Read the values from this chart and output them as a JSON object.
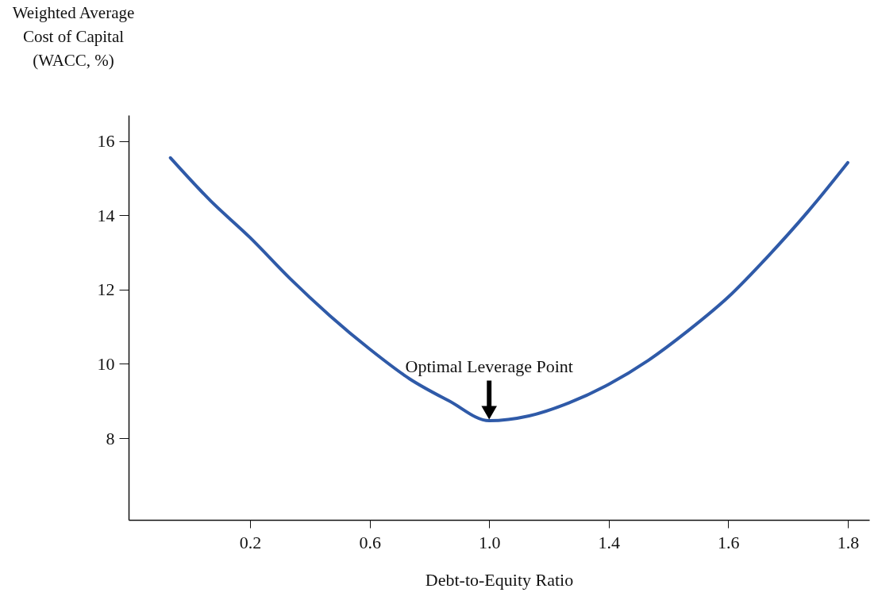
{
  "chart_data": {
    "type": "line",
    "xlabel": "Debt-to-Equity Ratio",
    "ylabel": "Weighted Average Cost of Capital (WACC, %)",
    "categories": [
      null,
      null,
      "0.2",
      null,
      null,
      "0.6",
      null,
      null,
      "1.0",
      null,
      null,
      "1.4",
      null,
      null,
      "1.6",
      null,
      null,
      "1.8"
    ],
    "series": [
      {
        "color": "#2f5aa8",
        "values": [
          15.55,
          14.4,
          13.4,
          12.3,
          11.3,
          10.4,
          9.6,
          9.0,
          8.47,
          8.6,
          8.95,
          9.45,
          10.1,
          10.9,
          11.8,
          12.9,
          14.1,
          15.42
        ]
      }
    ],
    "ylim": [
      5.8,
      16.7
    ],
    "yticks": [
      8,
      10,
      12,
      14,
      16
    ],
    "grid": false,
    "marker": "none",
    "line_style": "solid",
    "annotations": [
      {
        "text": "Optimal Leverage Point",
        "x": "1.0",
        "y": 8.47
      }
    ]
  }
}
